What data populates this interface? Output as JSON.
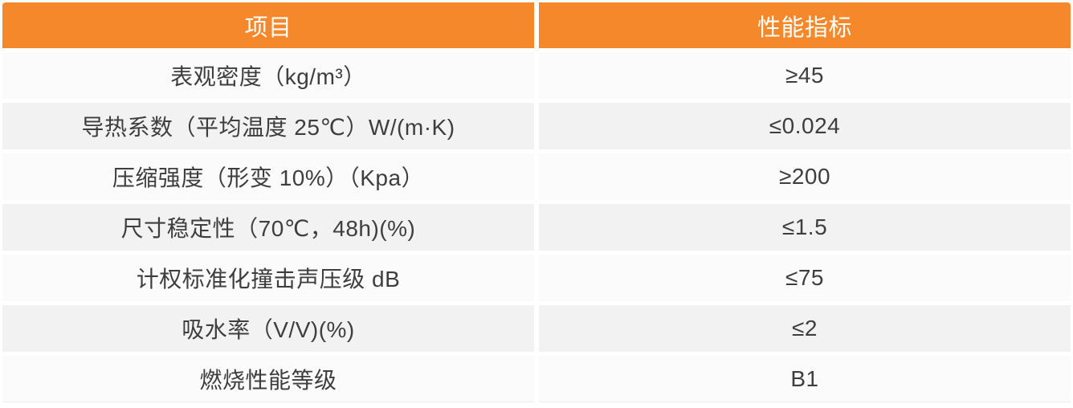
{
  "table": {
    "header": {
      "item_label": "项目",
      "value_label": "性能指标"
    },
    "rows": [
      {
        "item": "表观密度（kg/m³）",
        "value": "≥45"
      },
      {
        "item": "导热系数（平均温度 25℃）W/(m·K)",
        "value": "≤0.024"
      },
      {
        "item": "压缩强度（形变 10%）（Kpa）",
        "value": "≥200"
      },
      {
        "item": "尺寸稳定性（70℃，48h)(%)",
        "value": "≤1.5"
      },
      {
        "item": "计权标准化撞击声压级 dB",
        "value": "≤75"
      },
      {
        "item": "吸水率（V/V)(%)",
        "value": "≤2"
      },
      {
        "item": "燃烧性能等级",
        "value": "B1"
      }
    ],
    "colors": {
      "header_bg": "#f5882b",
      "header_text": "#ffffff",
      "row_odd_bg": "#fbfbfb",
      "row_even_bg": "#f2f2f2",
      "cell_text": "#3e3e3e",
      "gutter": "#ffffff"
    }
  }
}
